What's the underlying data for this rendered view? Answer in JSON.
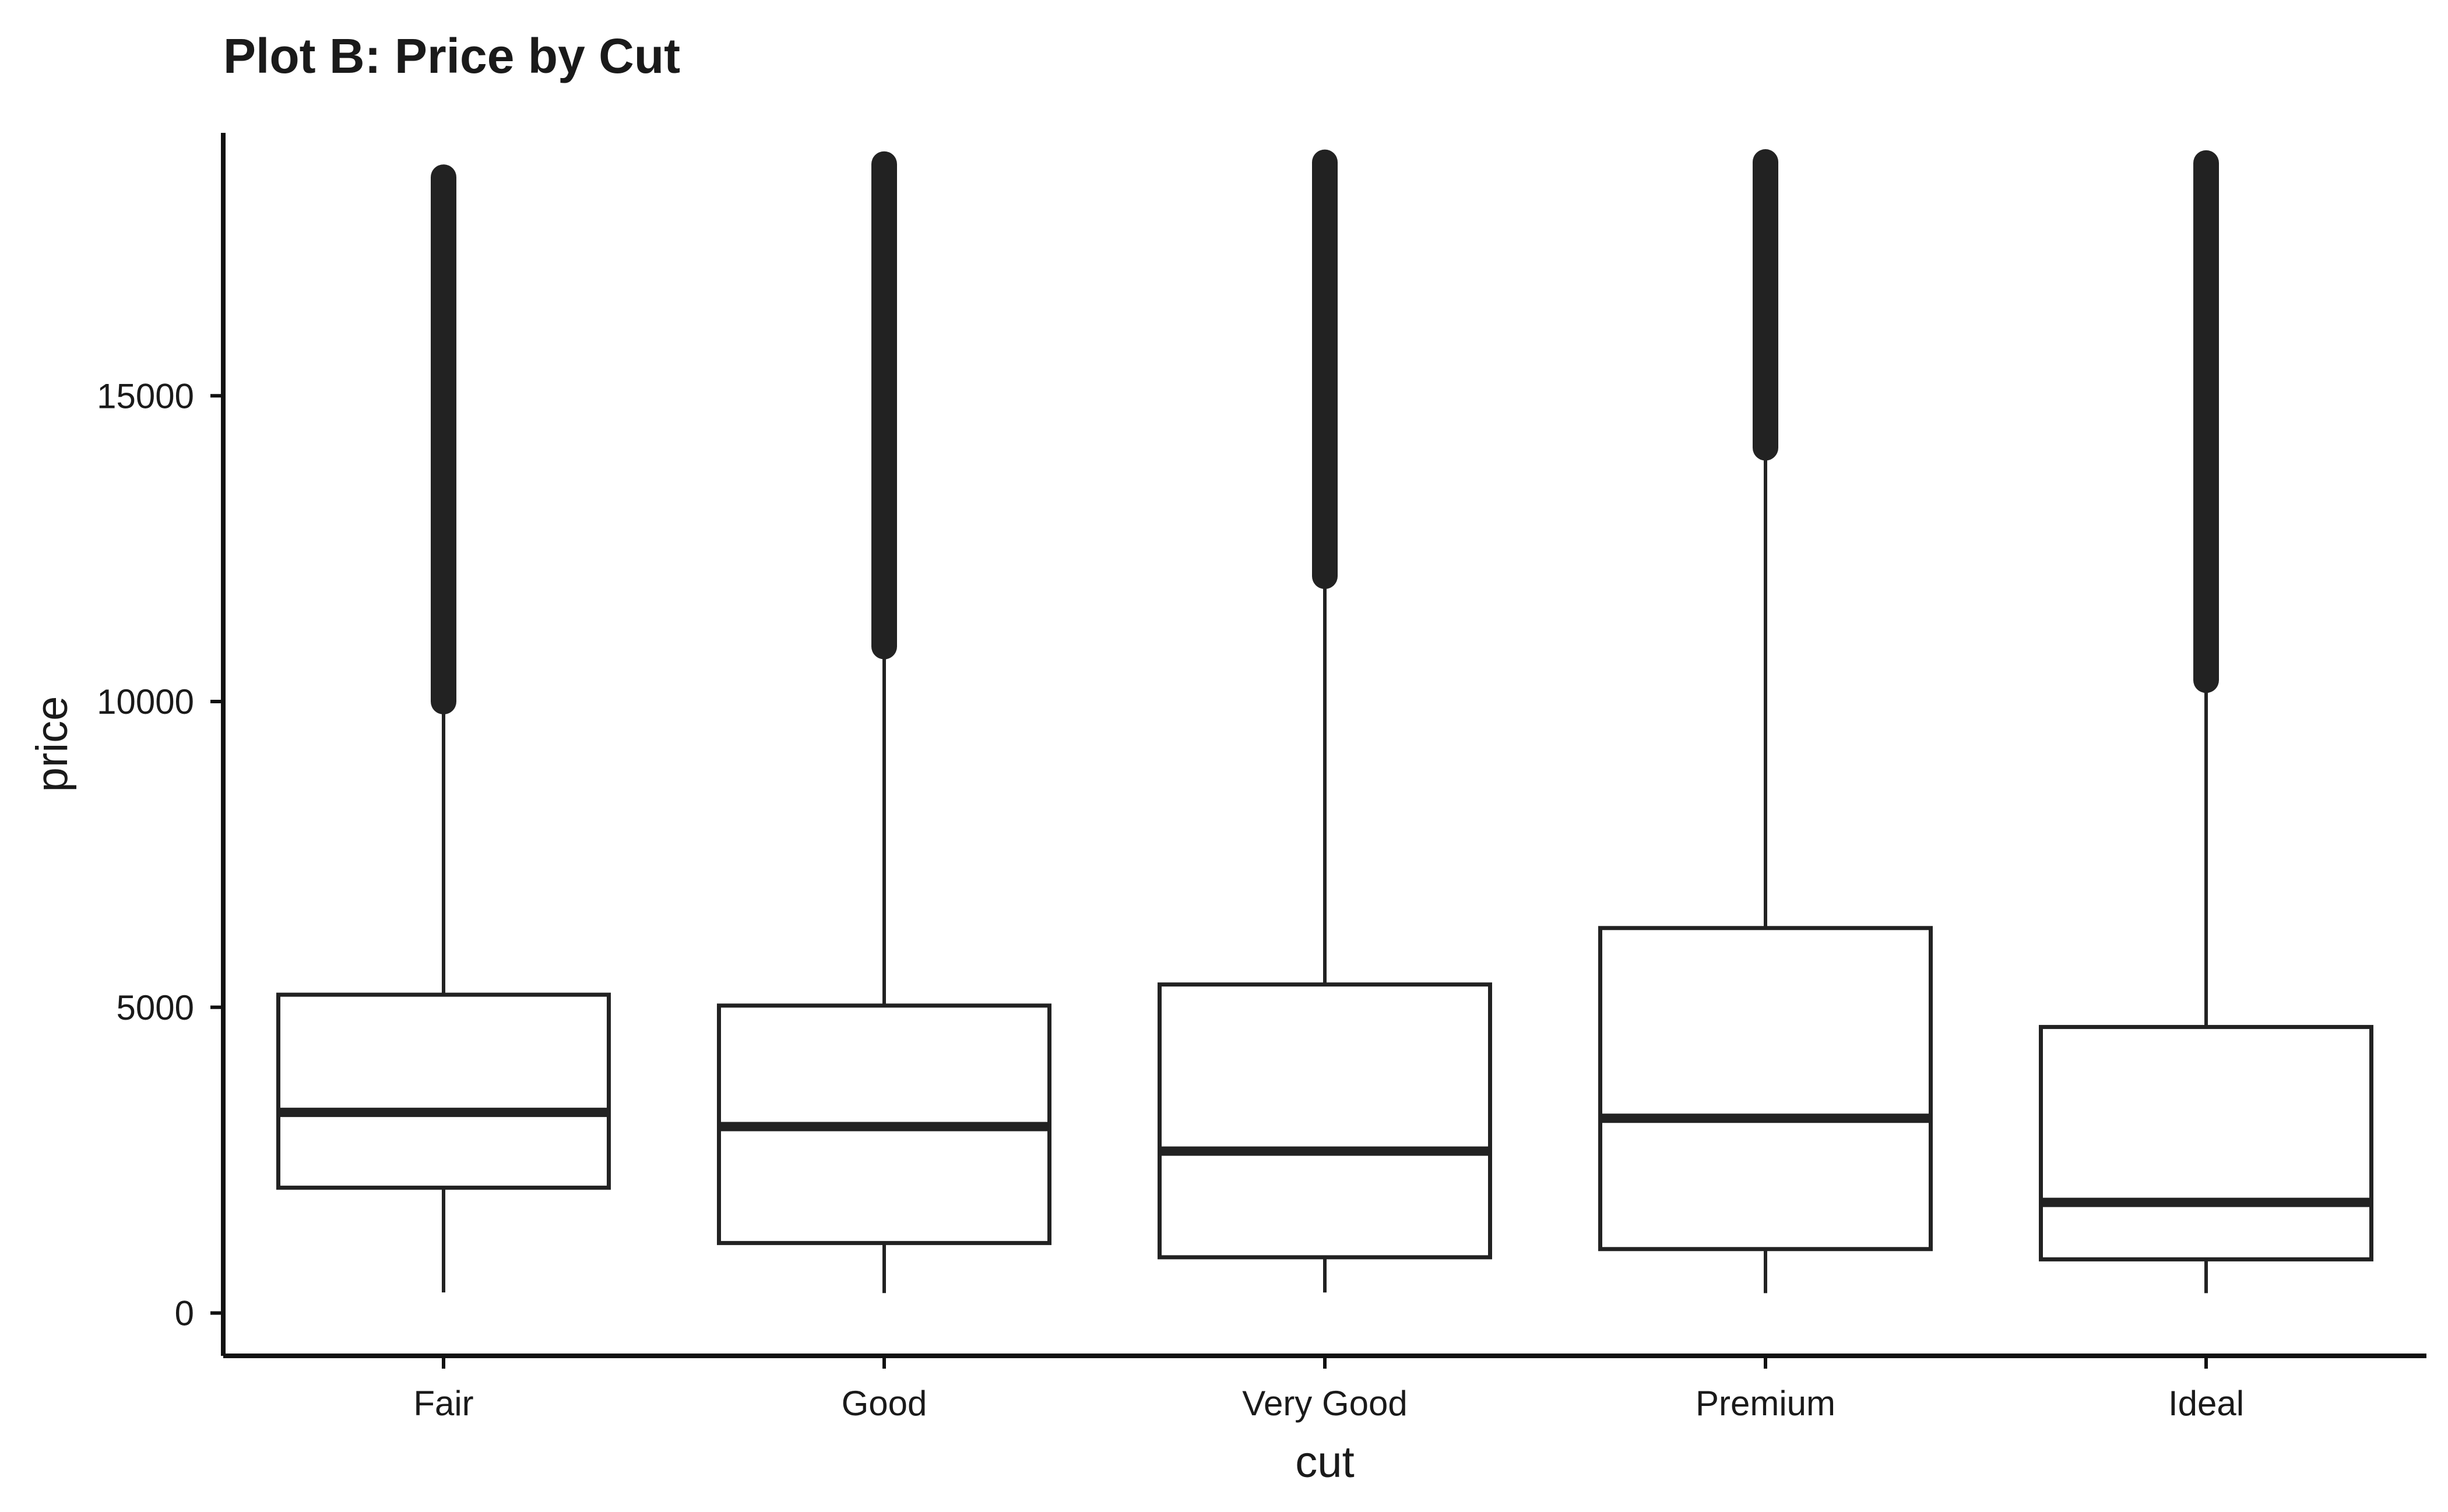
{
  "chart_data": {
    "type": "boxplot",
    "title": "Plot B: Price by Cut",
    "xlabel": "cut",
    "ylabel": "price",
    "categories": [
      "Fair",
      "Good",
      "Very Good",
      "Premium",
      "Ideal"
    ],
    "yticks": [
      0,
      5000,
      10000,
      15000
    ],
    "ylim": [
      -700,
      19300
    ],
    "grid": false,
    "series": [
      {
        "values": [
          {
            "min": 337,
            "q1": 2050,
            "median": 3282,
            "q3": 5206,
            "whisker_high": 9950,
            "outlier_min": 10000,
            "outlier_max": 18574
          },
          {
            "min": 327,
            "q1": 1145,
            "median": 3050,
            "q3": 5028,
            "whisker_high": 10850,
            "outlier_min": 10900,
            "outlier_max": 18788
          },
          {
            "min": 336,
            "q1": 912,
            "median": 2648,
            "q3": 5373,
            "whisker_high": 12000,
            "outlier_min": 12050,
            "outlier_max": 18818
          },
          {
            "min": 326,
            "q1": 1046,
            "median": 3185,
            "q3": 6296,
            "whisker_high": 14100,
            "outlier_min": 14150,
            "outlier_max": 18823
          },
          {
            "min": 326,
            "q1": 878,
            "median": 1810,
            "q3": 4678,
            "whisker_high": 10300,
            "outlier_min": 10350,
            "outlier_max": 18806
          }
        ]
      }
    ],
    "colors": {
      "line": "#222222",
      "fill": "#ffffff"
    }
  }
}
